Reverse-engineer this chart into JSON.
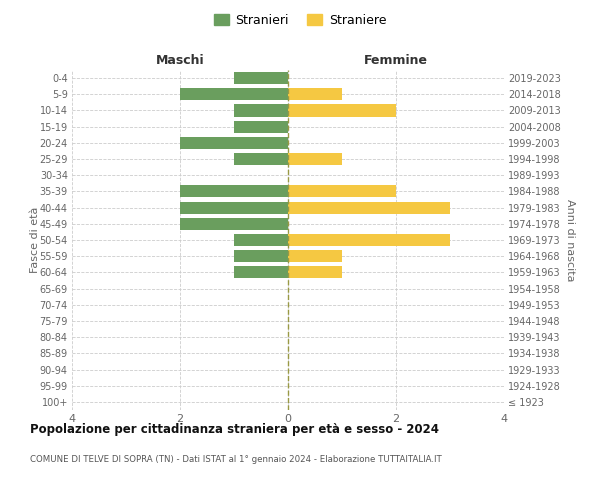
{
  "age_groups": [
    "100+",
    "95-99",
    "90-94",
    "85-89",
    "80-84",
    "75-79",
    "70-74",
    "65-69",
    "60-64",
    "55-59",
    "50-54",
    "45-49",
    "40-44",
    "35-39",
    "30-34",
    "25-29",
    "20-24",
    "15-19",
    "10-14",
    "5-9",
    "0-4"
  ],
  "birth_years": [
    "≤ 1923",
    "1924-1928",
    "1929-1933",
    "1934-1938",
    "1939-1943",
    "1944-1948",
    "1949-1953",
    "1954-1958",
    "1959-1963",
    "1964-1968",
    "1969-1973",
    "1974-1978",
    "1979-1983",
    "1984-1988",
    "1989-1993",
    "1994-1998",
    "1999-2003",
    "2004-2008",
    "2009-2013",
    "2014-2018",
    "2019-2023"
  ],
  "maschi": [
    0,
    0,
    0,
    0,
    0,
    0,
    0,
    0,
    1,
    1,
    1,
    2,
    2,
    2,
    0,
    1,
    2,
    1,
    1,
    2,
    1
  ],
  "femmine": [
    0,
    0,
    0,
    0,
    0,
    0,
    0,
    0,
    1,
    1,
    3,
    0,
    3,
    2,
    0,
    1,
    0,
    0,
    2,
    1,
    0
  ],
  "color_maschi": "#6a9e5e",
  "color_femmine": "#f5c842",
  "title": "Popolazione per cittadinanza straniera per età e sesso - 2024",
  "subtitle": "COMUNE DI TELVE DI SOPRA (TN) - Dati ISTAT al 1° gennaio 2024 - Elaborazione TUTTAITALIA.IT",
  "xlabel_left": "Maschi",
  "xlabel_right": "Femmine",
  "ylabel_left": "Fasce di età",
  "ylabel_right": "Anni di nascita",
  "legend_maschi": "Stranieri",
  "legend_femmine": "Straniere",
  "xlim": 4,
  "background_color": "#ffffff",
  "grid_color": "#cccccc"
}
